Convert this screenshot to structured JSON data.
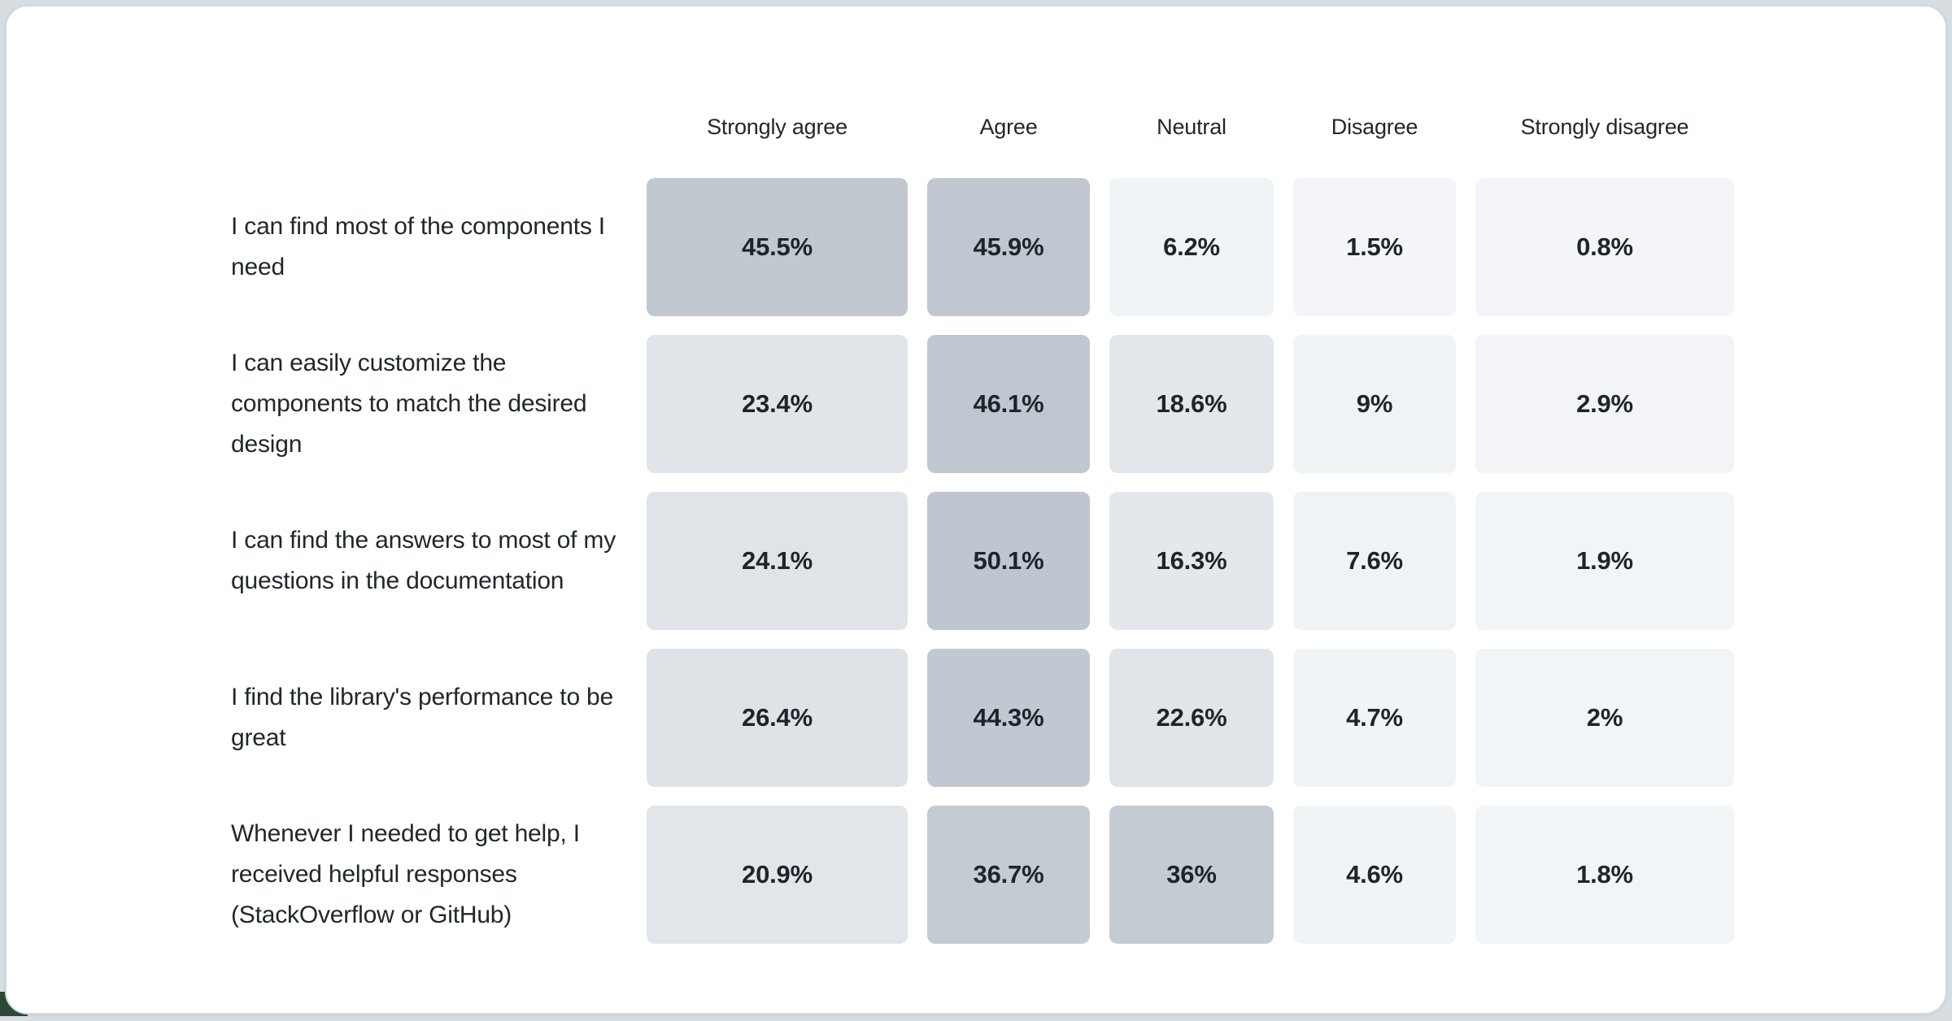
{
  "page": {
    "background_color": "#d8dde2",
    "card_background": "#ffffff",
    "card_border_color": "#d3d9df",
    "corner_accent_color": "#2c4a37",
    "header_text_color": "#21272a",
    "label_text_color": "#21272a",
    "value_text_color": "#1e242a"
  },
  "chart_data": {
    "type": "heatmap",
    "title": "",
    "legend": "none",
    "grid": "off",
    "value_range": [
      0,
      50.1
    ],
    "columns": [
      "Strongly agree",
      "Agree",
      "Neutral",
      "Disagree",
      "Strongly disagree"
    ],
    "rows": [
      {
        "label": "I can find most of the components I need",
        "values": [
          45.5,
          45.9,
          6.2,
          1.5,
          0.8
        ],
        "display": [
          "45.5%",
          "45.9%",
          "6.2%",
          "1.5%",
          "0.8%"
        ]
      },
      {
        "label": "I can easily customize the components to match the desired design",
        "values": [
          23.4,
          46.1,
          18.6,
          9,
          2.9
        ],
        "display": [
          "23.4%",
          "46.1%",
          "18.6%",
          "9%",
          "2.9%"
        ]
      },
      {
        "label": "I can find the answers to most of my questions in the documentation",
        "values": [
          24.1,
          50.1,
          16.3,
          7.6,
          1.9
        ],
        "display": [
          "24.1%",
          "50.1%",
          "16.3%",
          "7.6%",
          "1.9%"
        ]
      },
      {
        "label": "I find the library's performance to be great",
        "values": [
          26.4,
          44.3,
          22.6,
          4.7,
          2
        ],
        "display": [
          "26.4%",
          "44.3%",
          "22.6%",
          "4.7%",
          "2%"
        ]
      },
      {
        "label": "Whenever I needed to get help, I received helpful responses (StackOverflow or GitHub)",
        "values": [
          20.9,
          36.7,
          36,
          4.6,
          1.8
        ],
        "display": [
          "20.9%",
          "36.7%",
          "36%",
          "4.6%",
          "1.8%"
        ]
      }
    ],
    "color_scale": {
      "stops": [
        {
          "v": 0,
          "c": "#f3f5f8"
        },
        {
          "v": 9,
          "c": "#f0f3f6"
        },
        {
          "v": 16,
          "c": "#e4e8ec"
        },
        {
          "v": 27,
          "c": "#dfe3e8"
        },
        {
          "v": 36,
          "c": "#c5cbd3"
        },
        {
          "v": 50,
          "c": "#bfc6cf"
        }
      ]
    }
  }
}
